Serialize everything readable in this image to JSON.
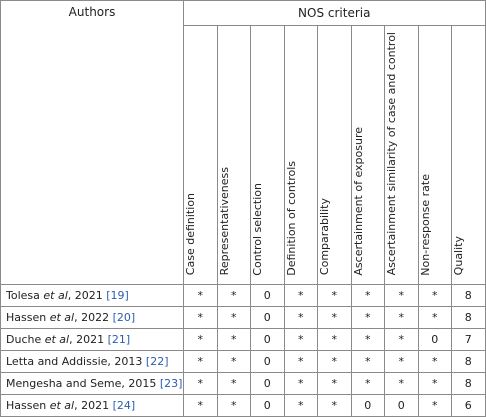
{
  "table": {
    "header": {
      "authors": "Authors",
      "group": "NOS criteria"
    },
    "columns": [
      "Case definition",
      "Representativeness",
      "Control selection",
      "Definition of controls",
      "Comparability",
      "Ascertainment of exposure",
      "Ascertainment similarity of case and control",
      "Non-response rate",
      "Quality"
    ],
    "rows": [
      {
        "author": "Tolesa",
        "etal": "et al",
        "year": ", 2021",
        "ref": "[19]",
        "cells": [
          "*",
          "*",
          0,
          "*",
          "*",
          "*",
          "*",
          "*",
          8
        ]
      },
      {
        "author": "Hassen",
        "etal": "et al",
        "year": ", 2022",
        "ref": "[20]",
        "cells": [
          "*",
          "*",
          0,
          "*",
          "*",
          "*",
          "*",
          "*",
          8
        ]
      },
      {
        "author": "Duche",
        "etal": "et al",
        "year": ", 2021",
        "ref": "[21]",
        "cells": [
          "*",
          "*",
          0,
          "*",
          "*",
          "*",
          "*",
          0,
          7
        ]
      },
      {
        "author": "Letta and Addissie",
        "year": ", 2013",
        "ref": "[22]",
        "cells": [
          "*",
          "*",
          0,
          "*",
          "*",
          "*",
          "*",
          "*",
          8
        ]
      },
      {
        "author": "Mengesha and Seme",
        "year": ", 2015",
        "ref": "[23]",
        "cells": [
          "*",
          "*",
          0,
          "*",
          "*",
          "*",
          "*",
          "*",
          8
        ]
      },
      {
        "author": "Hassen",
        "etal": "et al",
        "year": ", 2021",
        "ref": "[24]",
        "cells": [
          "*",
          "*",
          0,
          "*",
          "*",
          0,
          0,
          "*",
          6
        ]
      }
    ]
  }
}
